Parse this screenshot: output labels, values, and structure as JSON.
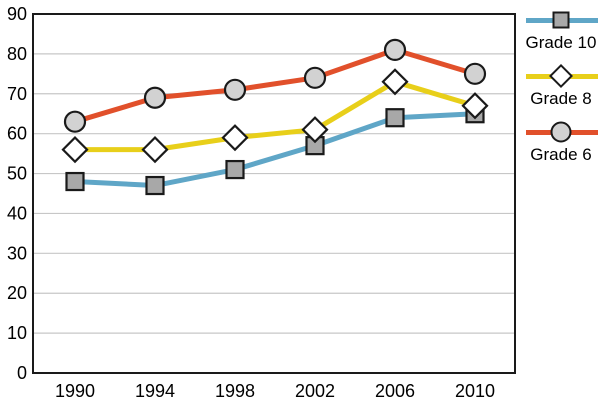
{
  "chart_data": {
    "type": "line",
    "title": "",
    "xlabel": "",
    "ylabel": "",
    "x": [
      "1990",
      "1994",
      "1998",
      "2002",
      "2006",
      "2010"
    ],
    "y_ticks": [
      0,
      10,
      20,
      30,
      40,
      50,
      60,
      70,
      80,
      90
    ],
    "ylim": [
      0,
      90
    ],
    "grid": true,
    "legend_position": "right",
    "series": [
      {
        "name": "Grade 10",
        "marker": "square",
        "color": "#5fa6c7",
        "marker_fill": "#a8a8a8",
        "values": [
          48,
          47,
          51,
          57,
          64,
          65
        ]
      },
      {
        "name": "Grade 8",
        "marker": "diamond",
        "color": "#e8cf1a",
        "marker_fill": "#ffffff",
        "values": [
          56,
          56,
          59,
          61,
          73,
          67
        ]
      },
      {
        "name": "Grade 6",
        "marker": "circle",
        "color": "#e1502b",
        "marker_fill": "#d2d2d2",
        "values": [
          63,
          69,
          71,
          74,
          81,
          75
        ]
      }
    ]
  },
  "colors": {
    "axis_border": "#1a1a1a",
    "gridline": "#c7c7c7",
    "tick_text": "#000000",
    "marker_stroke": "#1a1a1a",
    "background": "#ffffff"
  }
}
